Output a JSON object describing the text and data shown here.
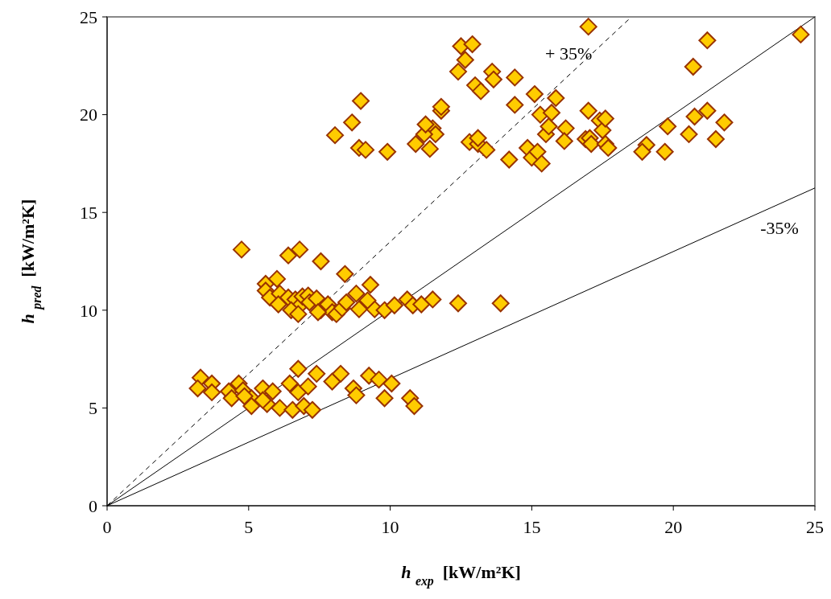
{
  "chart_data": {
    "type": "scatter",
    "xlabel": "h $_{exp}$  [kW/m²K]",
    "ylabel": "h $_{pred}$  [kW/m²K]",
    "xlim": [
      0,
      25
    ],
    "ylim": [
      0,
      25
    ],
    "xticks": [
      0,
      5,
      10,
      15,
      20,
      25
    ],
    "yticks": [
      0,
      5,
      10,
      15,
      20,
      25
    ],
    "grid": false,
    "annotations": [
      "+ 35%",
      "-35%"
    ],
    "series": [
      {
        "type": "line",
        "color": "#000000",
        "line_style": "dashed",
        "x": [
          0,
          18.52
        ],
        "values": [
          0,
          25
        ]
      },
      {
        "type": "line",
        "color": "#000000",
        "line_style": "solid",
        "x": [
          0,
          25
        ],
        "values": [
          0,
          25
        ]
      },
      {
        "type": "line",
        "color": "#000000",
        "line_style": "solid",
        "x": [
          0,
          25
        ],
        "values": [
          0,
          16.25
        ]
      },
      {
        "color": "#ffcc00",
        "marker": "diamond",
        "x": [
          8.05,
          8.65,
          8.96,
          8.9,
          9.13,
          9.9,
          12.4,
          12.5,
          12.9,
          12.65,
          13.0,
          13.2,
          13.6,
          13.65,
          14.4,
          14.4,
          11.8,
          11.8,
          11.5,
          11.6,
          11.2,
          11.25,
          10.9,
          11.4,
          12.8,
          13.1,
          13.1,
          13.4,
          14.2,
          15.1,
          14.85,
          15.0,
          15.2,
          15.3,
          15.5,
          15.6,
          15.7,
          15.85,
          16.2,
          16.15,
          15.35,
          16.9,
          17.05,
          17.0,
          17.1,
          17.0,
          17.4,
          17.5,
          17.6,
          17.6,
          17.7,
          20.7,
          21.2,
          24.5,
          19.8,
          19.05,
          18.9,
          19.7,
          20.55,
          20.75,
          21.2,
          21.5,
          21.8,
          4.75,
          6.4,
          6.8,
          7.55,
          8.4,
          9.3,
          5.6,
          6.0,
          5.6,
          5.75,
          6.1,
          6.05,
          6.4,
          6.65,
          6.75,
          6.9,
          7.1,
          7.15,
          7.4,
          7.55,
          7.8,
          7.95,
          8.1,
          8.3,
          8.45,
          8.8,
          8.9,
          9.45,
          9.8,
          10.15,
          10.6,
          10.8,
          11.1,
          11.5,
          12.4,
          13.9,
          6.5,
          6.75,
          7.45,
          9.2,
          3.3,
          3.2,
          3.7,
          3.7,
          4.3,
          4.4,
          4.65,
          4.8,
          5.1,
          5.1,
          5.5,
          5.65,
          5.85,
          6.1,
          6.45,
          6.55,
          6.75,
          6.75,
          6.95,
          7.1,
          7.25,
          7.4,
          7.95,
          8.25,
          8.7,
          8.8,
          9.25,
          9.6,
          10.05,
          9.8,
          10.7,
          10.85,
          5.5,
          4.85
        ],
        "values": [
          18.95,
          19.6,
          20.7,
          18.3,
          18.2,
          18.1,
          22.2,
          23.5,
          23.6,
          22.8,
          21.5,
          21.2,
          22.2,
          21.8,
          21.9,
          20.5,
          20.2,
          20.4,
          19.3,
          19.0,
          19.0,
          19.5,
          18.5,
          18.25,
          18.6,
          18.5,
          18.8,
          18.2,
          17.7,
          21.05,
          18.3,
          17.8,
          18.1,
          20.0,
          19.0,
          19.4,
          20.1,
          20.85,
          19.3,
          18.65,
          17.5,
          18.75,
          18.8,
          20.2,
          18.5,
          24.5,
          19.7,
          19.2,
          18.5,
          19.8,
          18.3,
          22.45,
          23.8,
          24.1,
          19.4,
          18.45,
          18.1,
          18.1,
          19.0,
          19.9,
          20.2,
          18.75,
          19.6,
          13.1,
          12.8,
          13.1,
          12.5,
          11.85,
          11.3,
          11.35,
          11.6,
          11.0,
          10.65,
          10.85,
          10.3,
          10.65,
          10.55,
          10.15,
          10.7,
          10.75,
          10.4,
          10.6,
          10.0,
          10.3,
          9.9,
          9.8,
          10.1,
          10.4,
          10.85,
          10.05,
          10.05,
          10.0,
          10.25,
          10.55,
          10.25,
          10.3,
          10.55,
          10.35,
          10.35,
          10.0,
          9.8,
          9.9,
          10.5,
          6.55,
          6.0,
          6.25,
          5.8,
          5.85,
          5.5,
          6.25,
          5.9,
          5.5,
          5.1,
          6.0,
          5.2,
          5.85,
          5.0,
          6.25,
          4.9,
          7.0,
          5.8,
          5.1,
          6.1,
          4.9,
          6.75,
          6.35,
          6.75,
          6.0,
          5.65,
          6.65,
          6.45,
          6.25,
          5.5,
          5.5,
          5.1,
          5.4,
          5.6
        ]
      }
    ]
  }
}
